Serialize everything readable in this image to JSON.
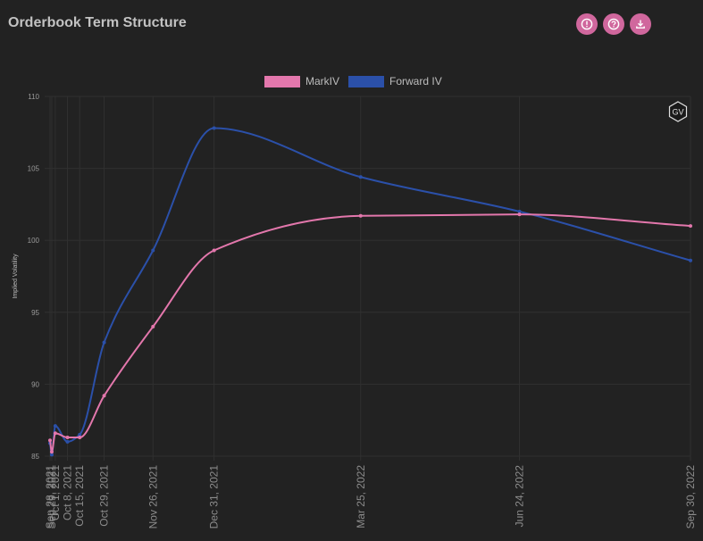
{
  "header": {
    "title": "Orderbook Term Structure",
    "buttons": [
      {
        "icon": "info-icon"
      },
      {
        "icon": "help-icon"
      },
      {
        "icon": "download-icon"
      }
    ]
  },
  "badge": {
    "label": "GV"
  },
  "colors": {
    "background": "#222222",
    "grid": "#303030",
    "axis_text": "#9a9a9a",
    "button": "#d0679d"
  },
  "chart_data": {
    "type": "line",
    "ylabel": "Implied Volatility",
    "xlabel": "",
    "ylim": [
      85,
      110
    ],
    "yticks": [
      85,
      90,
      95,
      100,
      105,
      110
    ],
    "legend_position": "top-center",
    "grid": true,
    "x": [
      "Sep 28, 2021",
      "Sep 29, 2021",
      "Oct 1, 2021",
      "Oct 8, 2021",
      "Oct 15, 2021",
      "Oct 29, 2021",
      "Nov 26, 2021",
      "Dec 31, 2021",
      "Mar 25, 2022",
      "Jun 24, 2022",
      "Sep 30, 2022"
    ],
    "series": [
      {
        "name": "MarkIV",
        "color": "#e377ac",
        "values": [
          86.1,
          85.3,
          86.6,
          86.3,
          86.3,
          89.2,
          94.0,
          99.3,
          101.7,
          101.8,
          101.0
        ]
      },
      {
        "name": "Forward IV",
        "color": "#2b50a9",
        "values": [
          85.9,
          85.1,
          87.1,
          86.0,
          86.5,
          92.9,
          99.3,
          107.8,
          104.4,
          102.0,
          98.6
        ]
      }
    ]
  }
}
